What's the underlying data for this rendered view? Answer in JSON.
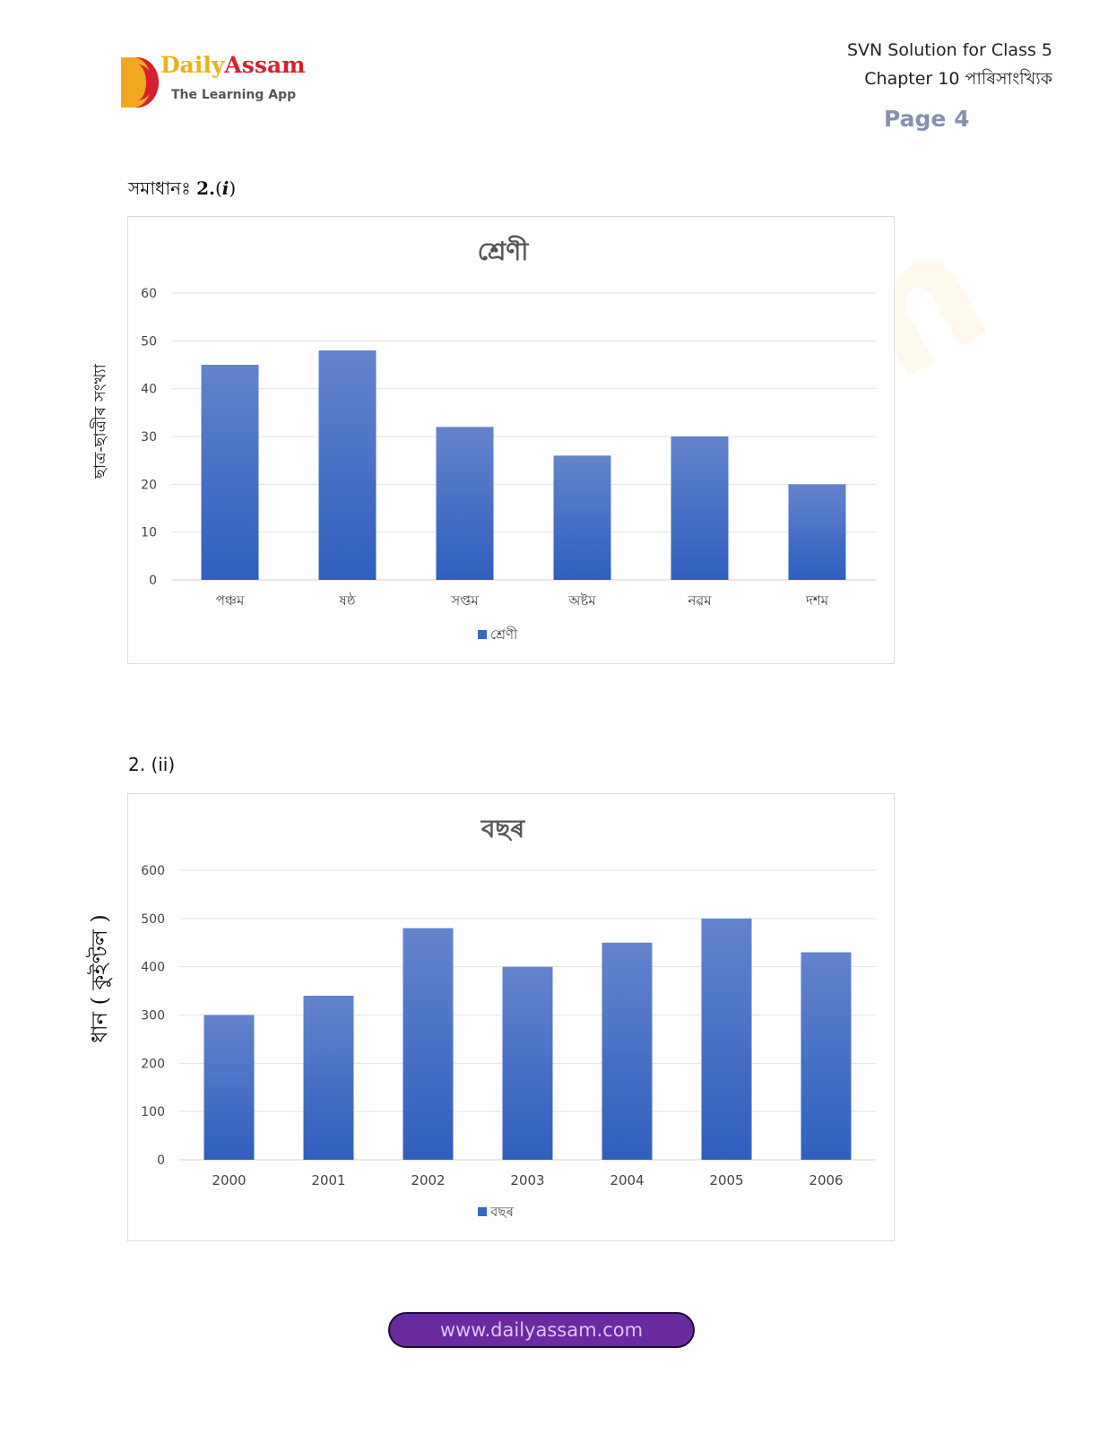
{
  "header": {
    "logo_text_1": "Daily",
    "logo_text_2": "Assam",
    "logo_tagline": "The Learning App",
    "title_line1": "SVN Solution for Class 5",
    "title_line2": "Chapter 10 পাৰিসাংখ্যিক",
    "page": "Page 4"
  },
  "section1": {
    "prefix": "সমাধানঃ",
    "number": "2.",
    "paren_open": "(",
    "roman": "i",
    "paren_close": ")"
  },
  "section2": {
    "label": "2. (ii)"
  },
  "chart_data": [
    {
      "type": "bar",
      "title": "শ্ৰেণী",
      "ylabel": "ছাত্ৰ-ছাত্ৰীৰ সংখ্যা",
      "xlabel": "",
      "categories": [
        "পঞ্চম",
        "ষষ্ঠ",
        "সপ্তম",
        "অষ্টম",
        "নৱম",
        "দশম"
      ],
      "series": [
        {
          "name": "শ্ৰেণী",
          "values": [
            45,
            48,
            32,
            26,
            30,
            20
          ]
        }
      ],
      "ylim": [
        0,
        60
      ],
      "yticks": [
        0,
        10,
        20,
        30,
        40,
        50,
        60
      ],
      "grid": true,
      "legend": "bottom"
    },
    {
      "type": "bar",
      "title": "বছৰ",
      "ylabel": "ধান ( কুইণ্টল )",
      "xlabel": "",
      "categories": [
        "2000",
        "2001",
        "2002",
        "2003",
        "2004",
        "2005",
        "2006"
      ],
      "series": [
        {
          "name": "বছৰ",
          "values": [
            300,
            340,
            480,
            400,
            450,
            500,
            430
          ]
        }
      ],
      "ylim": [
        0,
        600
      ],
      "yticks": [
        0,
        100,
        200,
        300,
        400,
        500,
        600
      ],
      "grid": true,
      "legend": "bottom"
    }
  ],
  "colors": {
    "bar_top": "#6384cc",
    "bar_bottom": "#2f5fbf",
    "accent_purple": "#6a2aa0"
  },
  "footer": {
    "url": "www.dailyassam.com"
  }
}
